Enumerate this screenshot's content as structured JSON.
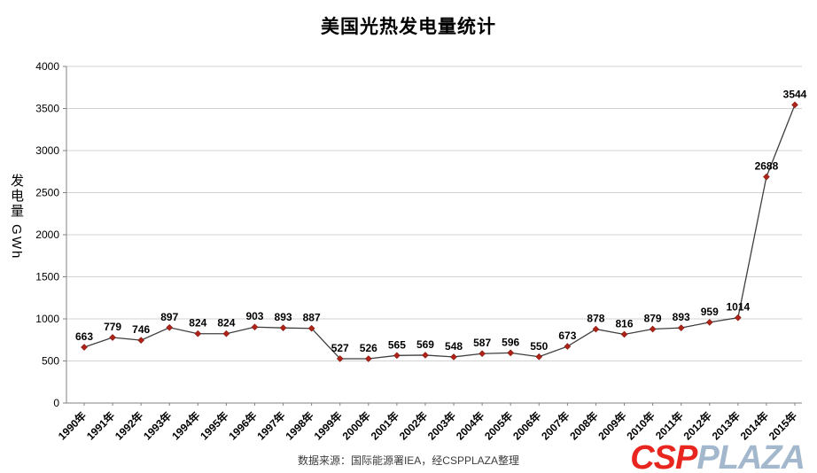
{
  "title": "美国光热发电量统计",
  "y_axis_label": "发电量 GWh",
  "source_note": "数据来源：国际能源署IEA，经CSPPLAZA整理",
  "logo": {
    "csp": "CSP",
    "plaza": "PLAZA"
  },
  "colors": {
    "line": "#3f3f3f",
    "marker": "#b02318",
    "grid": "#d3d3d3",
    "axis": "#808080",
    "logo_csp": "#e8251f",
    "logo_plaza": "#a3b8cc"
  },
  "chart_data": {
    "type": "line",
    "title": "美国光热发电量统计",
    "xlabel": "",
    "ylabel": "发电量 GWh",
    "categories": [
      "1990年",
      "1991年",
      "1992年",
      "1993年",
      "1994年",
      "1995年",
      "1996年",
      "1997年",
      "1998年",
      "1999年",
      "2000年",
      "2001年",
      "2002年",
      "2003年",
      "2004年",
      "2005年",
      "2006年",
      "2007年",
      "2008年",
      "2009年",
      "2010年",
      "2011年",
      "2012年",
      "2013年",
      "2014年",
      "2015年"
    ],
    "values": [
      663,
      779,
      746,
      897,
      824,
      824,
      903,
      893,
      887,
      527,
      526,
      565,
      569,
      548,
      587,
      596,
      550,
      673,
      878,
      816,
      879,
      893,
      959,
      1014,
      2688,
      3544
    ],
    "ylim": [
      0,
      4000
    ],
    "ytick_step": 500,
    "grid": true,
    "legend_position": "none",
    "data_labels": true
  }
}
